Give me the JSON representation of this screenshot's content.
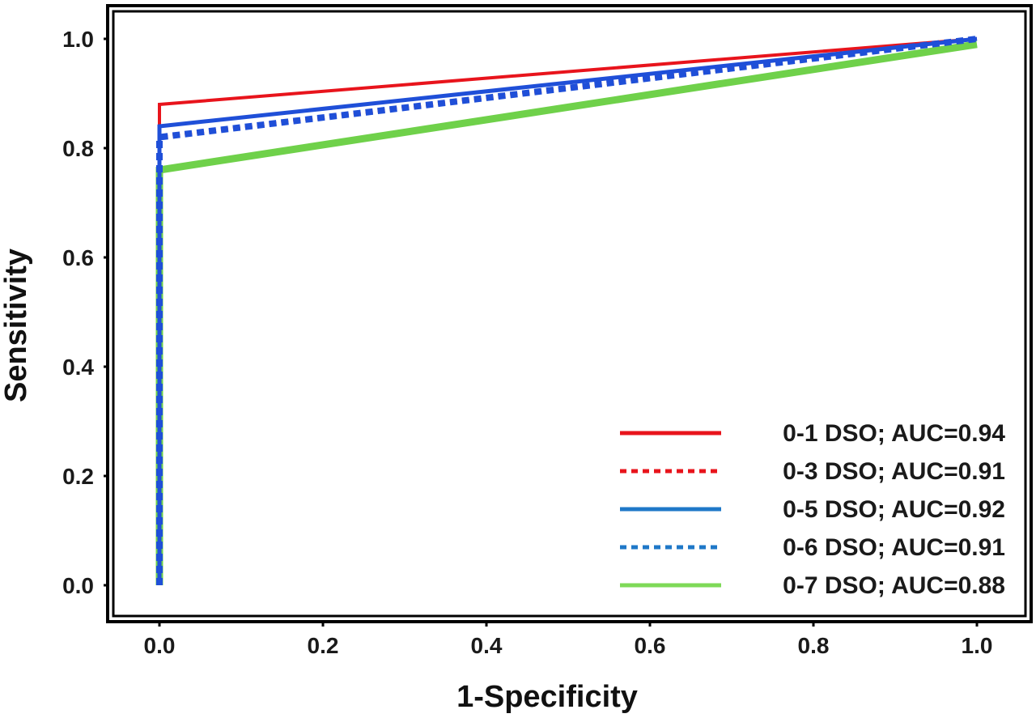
{
  "chart_data": {
    "type": "line",
    "xlabel": "1-Specificity",
    "ylabel": "Sensitivity",
    "xlim": [
      0,
      1
    ],
    "ylim": [
      0,
      1
    ],
    "x_ticks": [
      "0.0",
      "0.2",
      "0.4",
      "0.6",
      "0.8",
      "1.0"
    ],
    "y_ticks": [
      "0.0",
      "0.2",
      "0.4",
      "0.6",
      "0.8",
      "1.0"
    ],
    "grid": false,
    "legend_position": "bottom-right",
    "series": [
      {
        "name": "0-1 DSO; AUC=0.94",
        "color": "#e8141c",
        "style": "solid",
        "points": [
          [
            0.0,
            0.0
          ],
          [
            0.0,
            0.88
          ],
          [
            1.0,
            1.0
          ]
        ]
      },
      {
        "name": "0-3 DSO; AUC=0.91",
        "color": "#e8141c",
        "style": "dotted",
        "points": [
          [
            0.0,
            0.0
          ],
          [
            0.0,
            0.82
          ],
          [
            1.0,
            1.0
          ]
        ]
      },
      {
        "name": "0-5 DSO; AUC=0.92",
        "color": "#1f4fd8",
        "style": "solid",
        "points": [
          [
            0.0,
            0.0
          ],
          [
            0.0,
            0.84
          ],
          [
            1.0,
            1.0
          ]
        ]
      },
      {
        "name": "0-6 DSO; AUC=0.91",
        "color": "#1f4fd8",
        "style": "dotted",
        "points": [
          [
            0.0,
            0.0
          ],
          [
            0.0,
            0.82
          ],
          [
            1.0,
            1.0
          ]
        ]
      },
      {
        "name": "0-7 DSO; AUC=0.88",
        "color": "#6fd14a",
        "style": "solid",
        "points": [
          [
            0.0,
            0.0
          ],
          [
            0.0,
            0.76
          ],
          [
            1.0,
            0.99
          ]
        ]
      }
    ],
    "legend_colors": [
      "#e8141c",
      "#e8141c",
      "#1f78c8",
      "#1f78c8",
      "#7ed957"
    ]
  }
}
